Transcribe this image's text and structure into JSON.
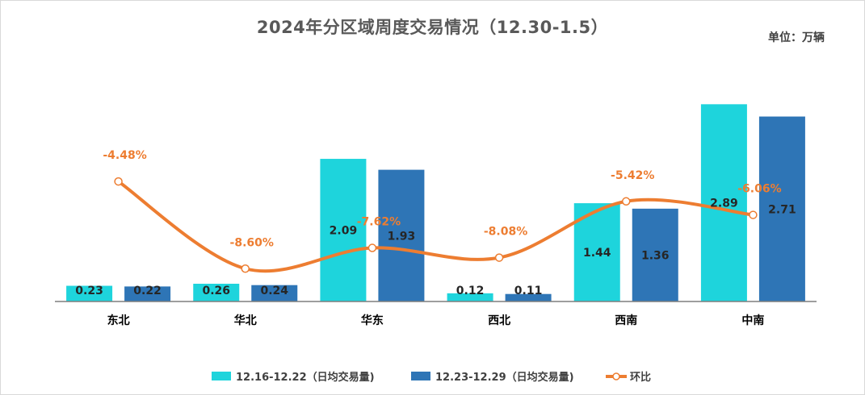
{
  "chart_data": {
    "type": "bar",
    "title": "2024年分区域周度交易情况（12.30-1.5）",
    "unit": "单位：万辆",
    "categories": [
      "东北",
      "华北",
      "华东",
      "西北",
      "西南",
      "中南"
    ],
    "series": [
      {
        "name": "12.16-12.22（日均交易量)",
        "type": "bar",
        "color": "#1ed4dc",
        "values": [
          0.23,
          0.26,
          2.09,
          0.12,
          1.44,
          2.89
        ]
      },
      {
        "name": "12.23-12.29（日均交易量)",
        "type": "bar",
        "color": "#2e75b6",
        "values": [
          0.22,
          0.24,
          1.93,
          0.11,
          1.36,
          2.71
        ]
      },
      {
        "name": "环比",
        "type": "line",
        "color": "#ed7d31",
        "values": [
          -4.48,
          -8.6,
          -7.62,
          -8.08,
          -5.42,
          -6.06
        ],
        "labels": [
          "-4.48%",
          "-8.60%",
          "-7.62%",
          "-8.08%",
          "-5.42%",
          "-6.06%"
        ]
      }
    ],
    "bar_labels": [
      [
        "0.23",
        "0.26",
        "2.09",
        "0.12",
        "1.44",
        "2.89"
      ],
      [
        "0.22",
        "0.24",
        "1.93",
        "0.11",
        "1.36",
        "2.71"
      ]
    ],
    "ylim": [
      0,
      3.0
    ],
    "y2lim": [
      -10,
      -2
    ],
    "legend_position": "bottom"
  }
}
